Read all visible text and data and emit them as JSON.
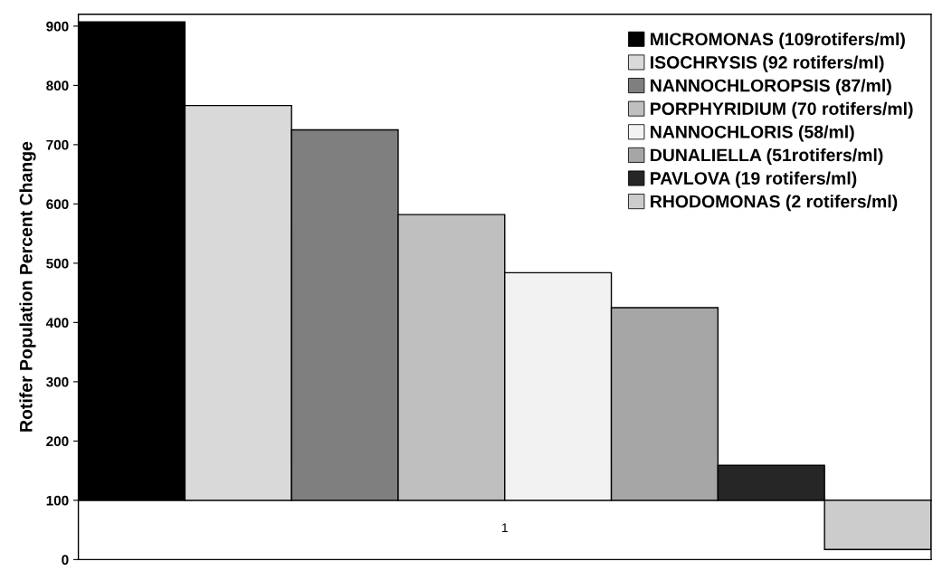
{
  "chart_data": {
    "type": "bar",
    "ylabel": "Rotifer Population Percent Change",
    "categories": [
      "1"
    ],
    "ylim": [
      0,
      920
    ],
    "yticks": [
      0,
      100,
      200,
      300,
      400,
      500,
      600,
      700,
      800,
      900
    ],
    "legend": "top right",
    "series": [
      {
        "name": "MICROMONAS (109rotifers/ml)",
        "color": "#000000",
        "base": [
          100
        ],
        "values": [
          807
        ]
      },
      {
        "name": "ISOCHRYSIS (92 rotifers/ml)",
        "color": "#d9d9d9",
        "base": [
          100
        ],
        "values": [
          666
        ]
      },
      {
        "name": "NANNOCHLOROPSIS (87/ml)",
        "color": "#7f7f7f",
        "base": [
          100
        ],
        "values": [
          625
        ]
      },
      {
        "name": "PORPHYRIDIUM (70 rotifers/ml)",
        "color": "#bfbfbf",
        "base": [
          100
        ],
        "values": [
          482
        ]
      },
      {
        "name": "NANNOCHLORIS (58/ml)",
        "color": "#f2f2f2",
        "base": [
          100
        ],
        "values": [
          384
        ]
      },
      {
        "name": "DUNALIELLA (51rotifers/ml)",
        "color": "#a6a6a6",
        "base": [
          100
        ],
        "values": [
          325
        ]
      },
      {
        "name": "PAVLOVA (19 rotifers/ml)",
        "color": "#262626",
        "base": [
          100
        ],
        "values": [
          59
        ]
      },
      {
        "name": "RHODOMONAS (2 rotifers/ml)",
        "color": "#cccccc",
        "base": [
          100
        ],
        "values": [
          -83
        ]
      }
    ]
  }
}
